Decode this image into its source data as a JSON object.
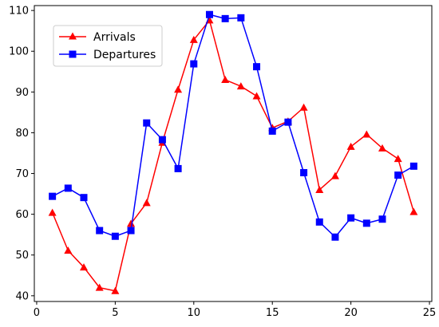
{
  "chart_data": {
    "type": "line",
    "title": "",
    "xlabel": "",
    "ylabel": "",
    "xlim": [
      -0.15,
      25.15
    ],
    "ylim": [
      38.6,
      111.2
    ],
    "x_ticks": [
      0,
      5,
      10,
      15,
      20,
      25
    ],
    "y_ticks": [
      40,
      50,
      60,
      70,
      80,
      90,
      100,
      110
    ],
    "grid": false,
    "legend_position": "upper-left",
    "x": [
      1,
      2,
      3,
      4,
      5,
      6,
      7,
      8,
      9,
      10,
      11,
      12,
      13,
      14,
      15,
      16,
      17,
      18,
      19,
      20,
      21,
      22,
      23,
      24
    ],
    "series": [
      {
        "name": "Arrivals",
        "color": "#ff0000",
        "marker": "triangle",
        "values": [
          60.4,
          51.1,
          47.0,
          42.0,
          41.2,
          57.7,
          62.8,
          77.6,
          90.6,
          102.8,
          107.6,
          93.0,
          91.4,
          89.0,
          81.2,
          82.8,
          86.2,
          66.0,
          69.4,
          76.6,
          79.6,
          76.2,
          73.6,
          60.6
        ]
      },
      {
        "name": "Departures",
        "color": "#0000ff",
        "marker": "square",
        "values": [
          64.4,
          66.4,
          64.1,
          56.0,
          54.6,
          56.0,
          82.4,
          78.3,
          71.2,
          96.9,
          109.0,
          108.0,
          108.2,
          96.2,
          80.4,
          82.6,
          70.2,
          58.1,
          54.4,
          59.1,
          57.8,
          58.8,
          69.6,
          71.8
        ]
      }
    ]
  }
}
